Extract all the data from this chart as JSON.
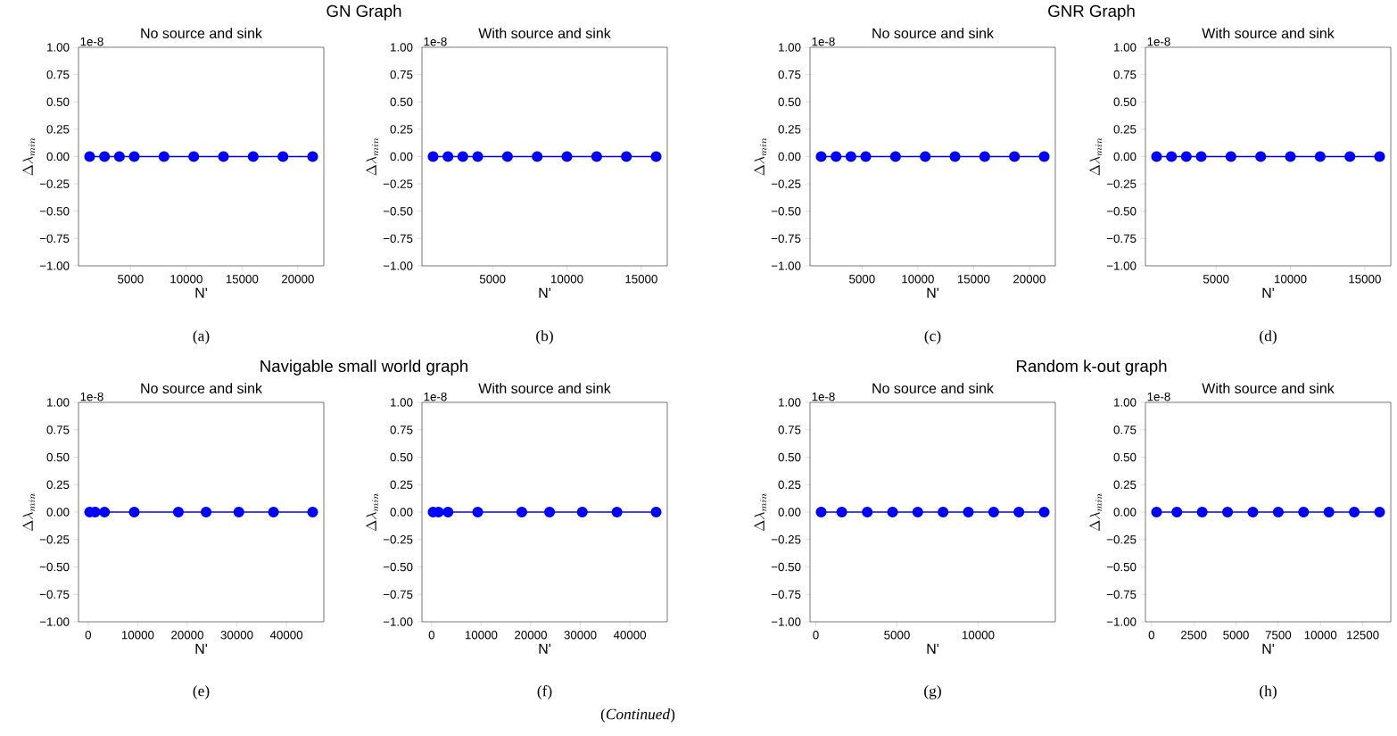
{
  "chart_data": [
    {
      "type": "line",
      "title": "No source and sink",
      "xlabel": "N'",
      "ylabel": "\\Delta\\lambda_{min}",
      "annotations": [
        "1e-8",
        "(a)",
        "GN Graph"
      ],
      "x": [
        1333,
        2667,
        4000,
        5333,
        8000,
        10667,
        13333,
        16000,
        18667,
        21333
      ],
      "values": [
        0,
        0,
        0,
        0,
        0,
        0,
        0,
        0,
        0,
        0
      ],
      "color": "#0000ff",
      "marker": "circle",
      "line_style": "solid",
      "xlim": [
        333,
        22333
      ],
      "xticks": [
        5000,
        10000,
        15000,
        20000
      ],
      "ylim": [
        -1,
        1
      ],
      "yticks": [
        {
          "value": -1,
          "label": "−1.00"
        },
        {
          "value": -0.75,
          "label": "−0.75"
        },
        {
          "value": -0.5,
          "label": "−0.50"
        },
        {
          "value": -0.25,
          "label": "−0.25"
        },
        {
          "value": 0,
          "label": "0.00"
        },
        {
          "value": 0.25,
          "label": "0.25"
        },
        {
          "value": 0.5,
          "label": "0.50"
        },
        {
          "value": 0.75,
          "label": "0.75"
        },
        {
          "value": 1,
          "label": "1.00"
        }
      ]
    },
    {
      "type": "line",
      "title": "With source and sink",
      "xlabel": "N'",
      "ylabel": "\\Delta\\lambda_{min}",
      "annotations": [
        "1e-8",
        "(b)"
      ],
      "x": [
        1000,
        2000,
        3000,
        4000,
        6000,
        8000,
        10000,
        12000,
        14000,
        16000
      ],
      "values": [
        0,
        0,
        0,
        0,
        0,
        0,
        0,
        0,
        0,
        0
      ],
      "color": "#0000ff",
      "marker": "circle",
      "line_style": "solid",
      "xlim": [
        250,
        16750
      ],
      "xticks": [
        5000,
        10000,
        15000
      ],
      "ylim": [
        -1,
        1
      ],
      "yticks": [
        {
          "value": -1,
          "label": "−1.00"
        },
        {
          "value": -0.75,
          "label": "−0.75"
        },
        {
          "value": -0.5,
          "label": "−0.50"
        },
        {
          "value": -0.25,
          "label": "−0.25"
        },
        {
          "value": 0,
          "label": "0.00"
        },
        {
          "value": 0.25,
          "label": "0.25"
        },
        {
          "value": 0.5,
          "label": "0.50"
        },
        {
          "value": 0.75,
          "label": "0.75"
        },
        {
          "value": 1,
          "label": "1.00"
        }
      ]
    },
    {
      "type": "line",
      "title": "No source and sink",
      "xlabel": "N'",
      "ylabel": "\\Delta\\lambda_{min}",
      "annotations": [
        "1e-8",
        "(c)",
        "GNR Graph"
      ],
      "x": [
        1333,
        2667,
        4000,
        5333,
        8000,
        10667,
        13333,
        16000,
        18667,
        21333
      ],
      "values": [
        0,
        0,
        0,
        0,
        0,
        0,
        0,
        0,
        0,
        0
      ],
      "color": "#0000ff",
      "marker": "circle",
      "line_style": "solid",
      "xlim": [
        333,
        22333
      ],
      "xticks": [
        5000,
        10000,
        15000,
        20000
      ],
      "ylim": [
        -1,
        1
      ],
      "yticks": [
        {
          "value": -1,
          "label": "−1.00"
        },
        {
          "value": -0.75,
          "label": "−0.75"
        },
        {
          "value": -0.5,
          "label": "−0.50"
        },
        {
          "value": -0.25,
          "label": "−0.25"
        },
        {
          "value": 0,
          "label": "0.00"
        },
        {
          "value": 0.25,
          "label": "0.25"
        },
        {
          "value": 0.5,
          "label": "0.50"
        },
        {
          "value": 0.75,
          "label": "0.75"
        },
        {
          "value": 1,
          "label": "1.00"
        }
      ]
    },
    {
      "type": "line",
      "title": "With source and sink",
      "xlabel": "N'",
      "ylabel": "\\Delta\\lambda_{min}",
      "annotations": [
        "1e-8",
        "(d)"
      ],
      "x": [
        1000,
        2000,
        3000,
        4000,
        6000,
        8000,
        10000,
        12000,
        14000,
        16000
      ],
      "values": [
        0,
        0,
        0,
        0,
        0,
        0,
        0,
        0,
        0,
        0
      ],
      "color": "#0000ff",
      "marker": "circle",
      "line_style": "solid",
      "xlim": [
        250,
        16750
      ],
      "xticks": [
        5000,
        10000,
        15000
      ],
      "ylim": [
        -1,
        1
      ],
      "yticks": [
        {
          "value": -1,
          "label": "−1.00"
        },
        {
          "value": -0.75,
          "label": "−0.75"
        },
        {
          "value": -0.5,
          "label": "−0.50"
        },
        {
          "value": -0.25,
          "label": "−0.25"
        },
        {
          "value": 0,
          "label": "0.00"
        },
        {
          "value": 0.25,
          "label": "0.25"
        },
        {
          "value": 0.5,
          "label": "0.50"
        },
        {
          "value": 0.75,
          "label": "0.75"
        },
        {
          "value": 1,
          "label": "1.00"
        }
      ]
    },
    {
      "type": "line",
      "title": "No source and sink",
      "xlabel": "N'",
      "ylabel": "\\Delta\\lambda_{min}",
      "annotations": [
        "1e-8",
        "(e)",
        "Navigable small world graph"
      ],
      "x": [
        300,
        1400,
        3300,
        9300,
        18200,
        23800,
        30400,
        37400,
        45300
      ],
      "values": [
        0,
        0,
        0,
        0,
        0,
        0,
        0,
        0,
        0
      ],
      "color": "#0000ff",
      "marker": "circle",
      "line_style": "solid",
      "xlim": [
        -1950,
        47550
      ],
      "xticks": [
        0,
        10000,
        20000,
        30000,
        40000
      ],
      "ylim": [
        -1,
        1
      ],
      "yticks": [
        {
          "value": -1,
          "label": "−1.00"
        },
        {
          "value": -0.75,
          "label": "−0.75"
        },
        {
          "value": -0.5,
          "label": "−0.50"
        },
        {
          "value": -0.25,
          "label": "−0.25"
        },
        {
          "value": 0,
          "label": "0.00"
        },
        {
          "value": 0.25,
          "label": "0.25"
        },
        {
          "value": 0.5,
          "label": "0.50"
        },
        {
          "value": 0.75,
          "label": "0.75"
        },
        {
          "value": 1,
          "label": "1.00"
        }
      ]
    },
    {
      "type": "line",
      "title": "With source and sink",
      "xlabel": "N'",
      "ylabel": "\\Delta\\lambda_{min}",
      "annotations": [
        "1e-8",
        "(f)"
      ],
      "x": [
        300,
        1400,
        3300,
        9300,
        18200,
        23800,
        30400,
        37400,
        45300
      ],
      "values": [
        0,
        0,
        0,
        0,
        0,
        0,
        0,
        0,
        0
      ],
      "color": "#0000ff",
      "marker": "circle",
      "line_style": "solid",
      "xlim": [
        -1950,
        47550
      ],
      "xticks": [
        0,
        10000,
        20000,
        30000,
        40000
      ],
      "ylim": [
        -1,
        1
      ],
      "yticks": [
        {
          "value": -1,
          "label": "−1.00"
        },
        {
          "value": -0.75,
          "label": "−0.75"
        },
        {
          "value": -0.5,
          "label": "−0.50"
        },
        {
          "value": -0.25,
          "label": "−0.25"
        },
        {
          "value": 0,
          "label": "0.00"
        },
        {
          "value": 0.25,
          "label": "0.25"
        },
        {
          "value": 0.5,
          "label": "0.50"
        },
        {
          "value": 0.75,
          "label": "0.75"
        },
        {
          "value": 1,
          "label": "1.00"
        }
      ]
    },
    {
      "type": "line",
      "title": "No source and sink",
      "xlabel": "N'",
      "ylabel": "\\Delta\\lambda_{min}",
      "annotations": [
        "1e-8",
        "(g)",
        "Random k-out graph"
      ],
      "x": [
        330,
        1600,
        3170,
        4730,
        6280,
        7840,
        9400,
        10960,
        12510,
        14070
      ],
      "values": [
        0,
        0,
        0,
        0,
        0,
        0,
        0,
        0,
        0,
        0
      ],
      "color": "#0000ff",
      "marker": "circle",
      "line_style": "solid",
      "xlim": [
        -357,
        14757
      ],
      "xticks": [
        0,
        5000,
        10000
      ],
      "ylim": [
        -1,
        1
      ],
      "yticks": [
        {
          "value": -1,
          "label": "−1.00"
        },
        {
          "value": -0.75,
          "label": "−0.75"
        },
        {
          "value": -0.5,
          "label": "−0.50"
        },
        {
          "value": -0.25,
          "label": "−0.25"
        },
        {
          "value": 0,
          "label": "0.00"
        },
        {
          "value": 0.25,
          "label": "0.25"
        },
        {
          "value": 0.5,
          "label": "0.50"
        },
        {
          "value": 0.75,
          "label": "0.75"
        },
        {
          "value": 1,
          "label": "1.00"
        }
      ]
    },
    {
      "type": "line",
      "title": "With source and sink",
      "xlabel": "N'",
      "ylabel": "\\Delta\\lambda_{min}",
      "annotations": [
        "1e-8",
        "(h)",
        "(*Continued*)"
      ],
      "x": [
        300,
        1500,
        3000,
        4500,
        6000,
        7500,
        9000,
        10500,
        12000,
        13500
      ],
      "values": [
        0,
        0,
        0,
        0,
        0,
        0,
        0,
        0,
        0,
        0
      ],
      "color": "#0000ff",
      "marker": "circle",
      "line_style": "solid",
      "xlim": [
        -360,
        14160
      ],
      "xticks": [
        0,
        2500,
        5000,
        7500,
        10000,
        12500
      ],
      "ylim": [
        -1,
        1
      ],
      "yticks": [
        {
          "value": -1,
          "label": "−1.00"
        },
        {
          "value": -0.75,
          "label": "−0.75"
        },
        {
          "value": -0.5,
          "label": "−0.50"
        },
        {
          "value": -0.25,
          "label": "−0.25"
        },
        {
          "value": 0,
          "label": "0.00"
        },
        {
          "value": 0.25,
          "label": "0.25"
        },
        {
          "value": 0.5,
          "label": "0.50"
        },
        {
          "value": 0.75,
          "label": "0.75"
        },
        {
          "value": 1,
          "label": "1.00"
        }
      ]
    }
  ]
}
